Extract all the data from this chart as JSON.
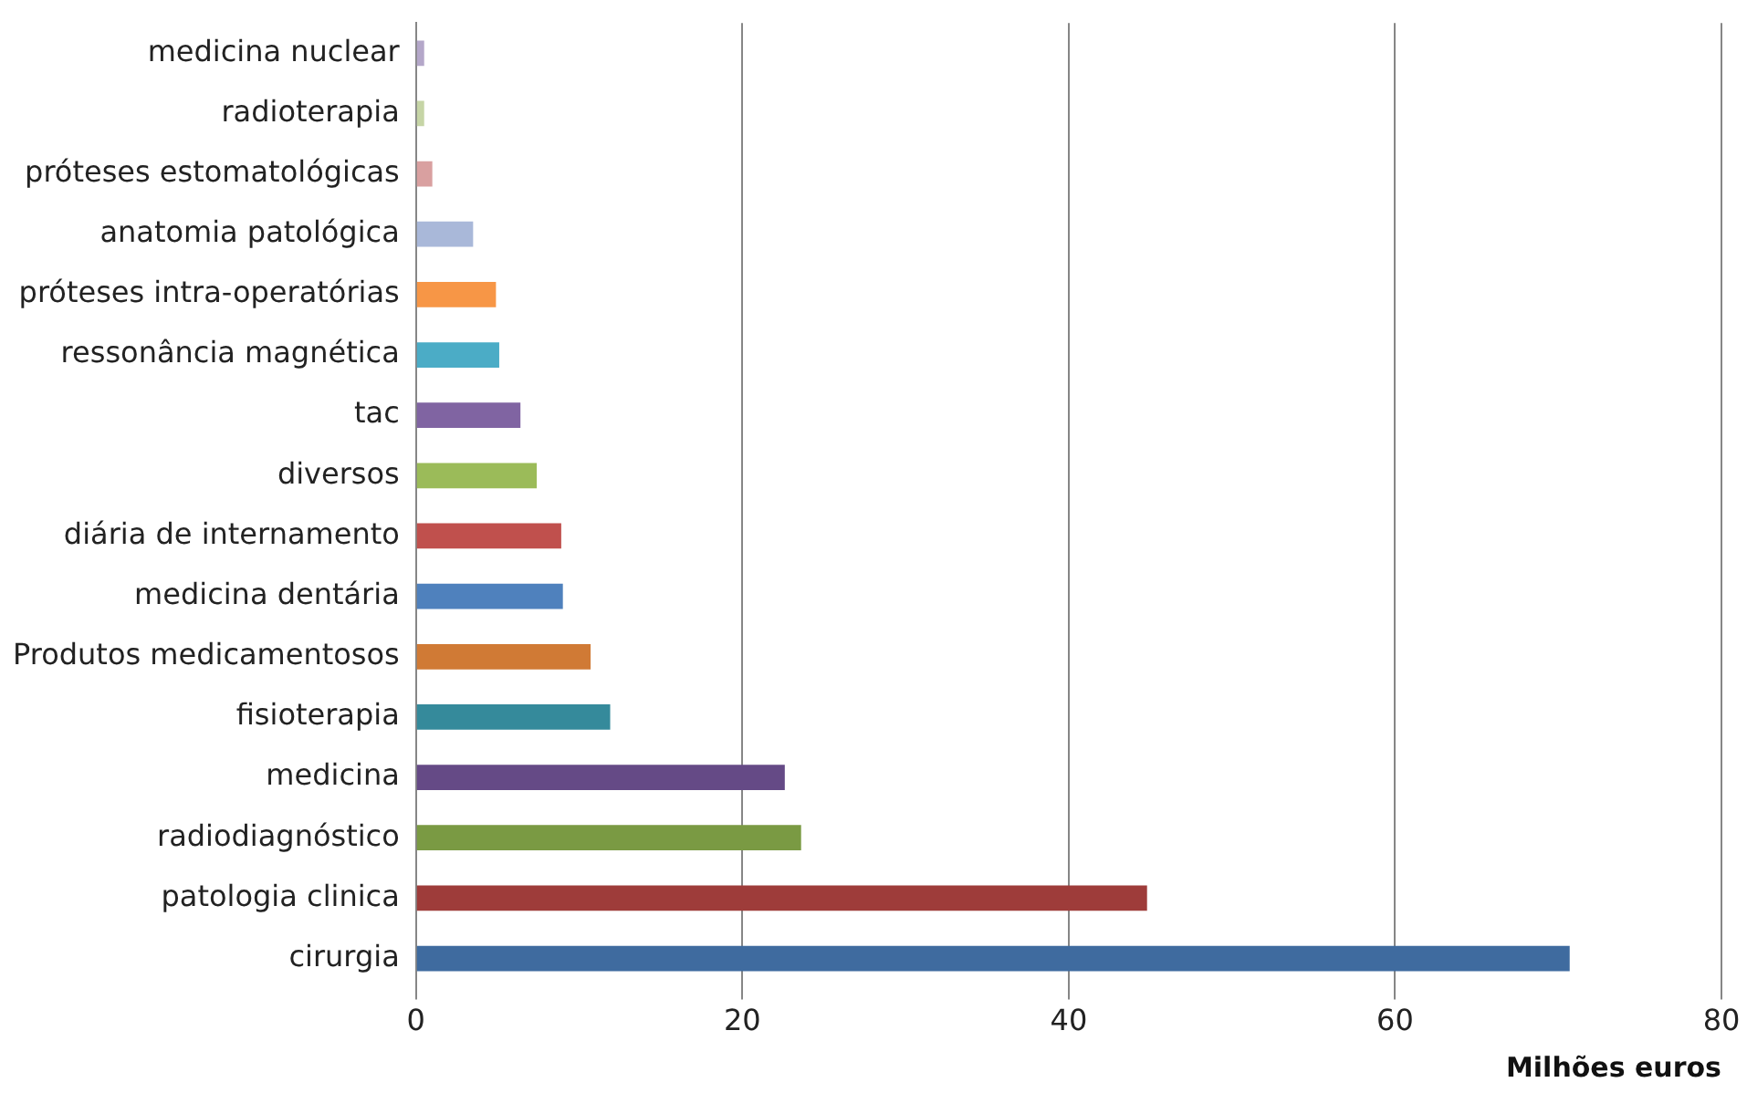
{
  "chart_data": {
    "type": "bar",
    "orientation": "horizontal",
    "xlabel": "Milhões euros",
    "categories": [
      "medicina nuclear",
      "radioterapia",
      "próteses estomatológicas",
      "anatomia patológica",
      "próteses intra-operatórias",
      "ressonância magnética",
      "tac",
      "diversos",
      "diária de internamento",
      "medicina dentária",
      "Produtos medicamentosos",
      "fisioterapia",
      "medicina",
      "radiodiagnóstico",
      "patologia clinica",
      "cirurgia"
    ],
    "values": [
      0.5,
      0.5,
      1,
      3.5,
      4.9,
      5.1,
      6.4,
      7.4,
      8.9,
      9,
      10.7,
      11.9,
      22.6,
      23.6,
      44.8,
      70.7
    ],
    "colors": [
      "#b4a7c9",
      "#c6d5a6",
      "#d9a0a0",
      "#a9b8d9",
      "#f79646",
      "#4bacc6",
      "#8064a2",
      "#9bbb59",
      "#c0504d",
      "#4f81bd",
      "#d07a35",
      "#358a9b",
      "#654a86",
      "#7a9a43",
      "#9e3c3a",
      "#3f6b9f"
    ],
    "xlim": [
      0,
      80
    ],
    "xticks": [
      0,
      20,
      40,
      60,
      80
    ],
    "grid": "x",
    "legend": false
  }
}
